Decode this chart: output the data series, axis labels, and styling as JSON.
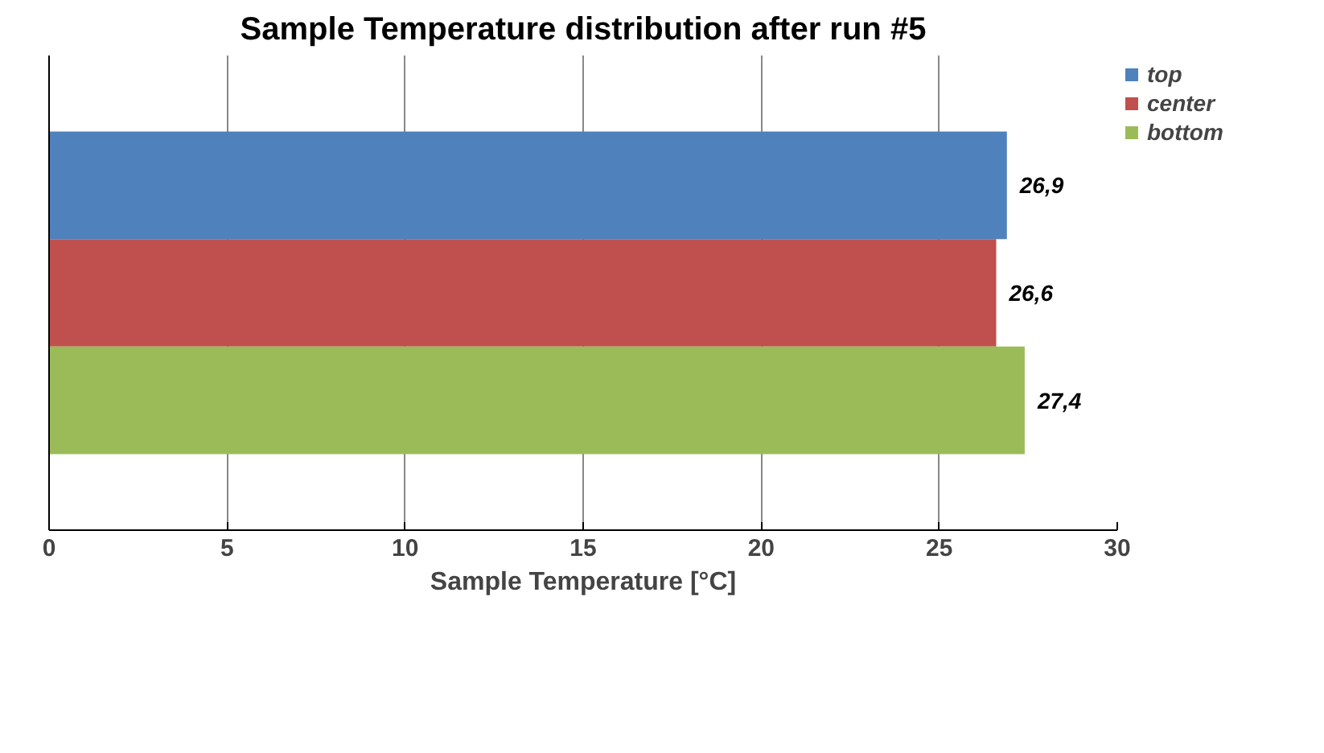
{
  "chart_data": {
    "type": "bar",
    "orientation": "horizontal",
    "title": "Sample Temperature distribution after run #5",
    "xlabel": "Sample Temperature [°C]",
    "categories": [
      null
    ],
    "series": [
      {
        "name": "top",
        "color": "#4f81bd",
        "values": [
          26.9
        ],
        "value_labels": [
          "26,9"
        ]
      },
      {
        "name": "center",
        "color": "#c0504d",
        "values": [
          26.6
        ],
        "value_labels": [
          "26,6"
        ]
      },
      {
        "name": "bottom",
        "color": "#9bbb59",
        "values": [
          27.4
        ],
        "value_labels": [
          "27,4"
        ]
      }
    ],
    "xlim": [
      0,
      30
    ],
    "xticks": [
      0,
      5,
      10,
      15,
      20,
      25,
      30
    ],
    "grid": "x",
    "legend": "top right",
    "tick_labels": "x"
  }
}
